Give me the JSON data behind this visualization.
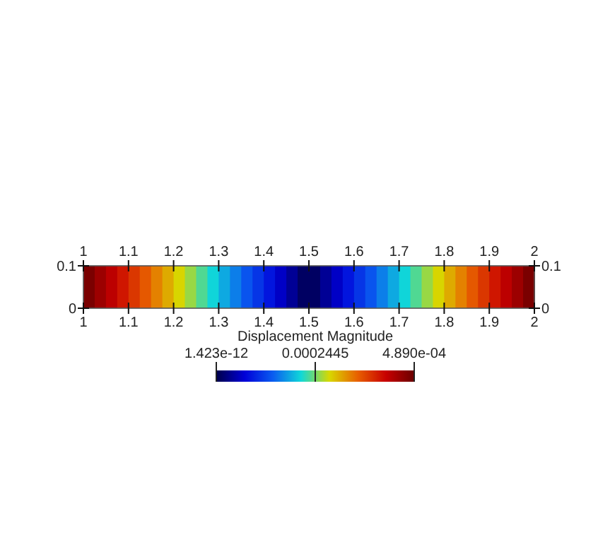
{
  "chart_data": {
    "type": "heatmap",
    "x": [
      1.0125,
      1.0375,
      1.0625,
      1.0875,
      1.1125,
      1.1375,
      1.1625,
      1.1875,
      1.2125,
      1.2375,
      1.2625,
      1.2875,
      1.3125,
      1.3375,
      1.3625,
      1.3875,
      1.4125,
      1.4375,
      1.4625,
      1.4875,
      1.5125,
      1.5375,
      1.5625,
      1.5875,
      1.6125,
      1.6375,
      1.6625,
      1.6875,
      1.7125,
      1.7375,
      1.7625,
      1.7875,
      1.8125,
      1.8375,
      1.8625,
      1.8875,
      1.9125,
      1.9375,
      1.9625,
      1.9875
    ],
    "cells": [
      [
        0.000477,
        0.000452,
        0.000428,
        0.000403,
        0.000379,
        0.000355,
        0.00033,
        0.000306,
        0.000281,
        0.000257,
        0.000232,
        0.000208,
        0.000183,
        0.000159,
        0.000134,
        0.00011,
        8.6e-05,
        6.1e-05,
        3.7e-05,
        1.2e-05,
        1.2e-05,
        3.7e-05,
        6.1e-05,
        8.6e-05,
        0.00011,
        0.000134,
        0.000159,
        0.000183,
        0.000208,
        0.000232,
        0.000257,
        0.000281,
        0.000306,
        0.00033,
        0.000355,
        0.000379,
        0.000403,
        0.000428,
        0.000452,
        0.000477
      ]
    ],
    "xlim": [
      1,
      2
    ],
    "xticks": [
      1,
      1.1,
      1.2,
      1.3,
      1.4,
      1.5,
      1.6,
      1.7,
      1.8,
      1.9,
      2
    ],
    "x2lim": [
      1,
      2
    ],
    "x2ticks": [
      1,
      1.1,
      1.2,
      1.3,
      1.4,
      1.5,
      1.6,
      1.7,
      1.8,
      1.9,
      2
    ],
    "ylim": [
      0,
      0.1
    ],
    "yticks": [
      0,
      0.1
    ],
    "y2lim": [
      0,
      0.1
    ],
    "y2ticks": [
      0,
      0.1
    ],
    "clabel": "Displacement Magnitude",
    "clim": [
      1.423e-12,
      0.000489
    ],
    "cticks": [
      {
        "value": 1.423e-12,
        "label": "1.423e-12"
      },
      {
        "value": 0.0002445,
        "label": "0.0002445"
      },
      {
        "value": 0.000489,
        "label": "4.890e-04"
      }
    ]
  }
}
